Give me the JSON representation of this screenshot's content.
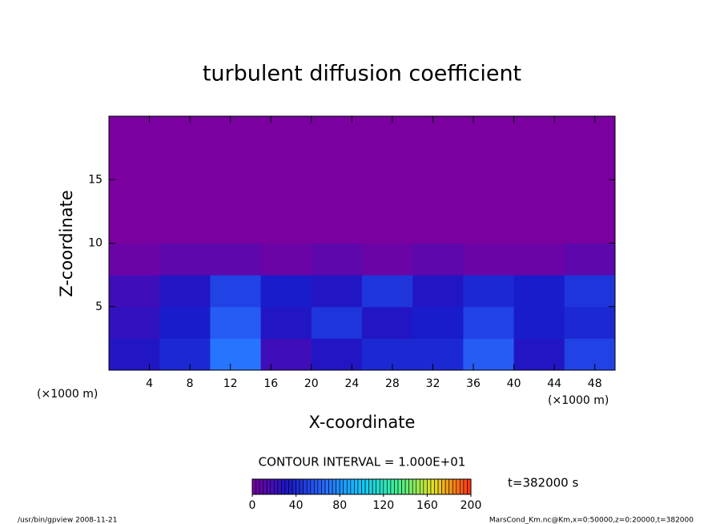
{
  "chart_data": {
    "type": "contour",
    "title": "turbulent diffusion coefficient",
    "x_label": "X-coordinate",
    "y_label": "Z-coordinate",
    "x_unit": "(×1000 m)",
    "xlim": [
      0,
      50
    ],
    "ylim": [
      0,
      20
    ],
    "xticks": [
      4,
      8,
      12,
      16,
      20,
      24,
      28,
      32,
      36,
      40,
      44,
      48
    ],
    "yticks": [
      5,
      10,
      15
    ],
    "field": {
      "x": [
        2.5,
        7.5,
        12.5,
        17.5,
        22.5,
        27.5,
        32.5,
        37.5,
        42.5,
        47.5
      ],
      "z": [
        1.25,
        3.75,
        6.25,
        8.75,
        11.25,
        13.75,
        16.25,
        18.75
      ],
      "values": [
        [
          30,
          40,
          70,
          20,
          30,
          40,
          40,
          60,
          30,
          50
        ],
        [
          25,
          35,
          60,
          30,
          45,
          30,
          35,
          50,
          35,
          40
        ],
        [
          20,
          30,
          50,
          35,
          30,
          45,
          30,
          40,
          35,
          45
        ],
        [
          5,
          10,
          10,
          5,
          10,
          5,
          10,
          5,
          5,
          10
        ],
        [
          0,
          0,
          0,
          0,
          0,
          0,
          0,
          0,
          0,
          0
        ],
        [
          0,
          0,
          0,
          0,
          0,
          0,
          0,
          0,
          0,
          0
        ],
        [
          0,
          0,
          0,
          0,
          0,
          0,
          0,
          0,
          0,
          0
        ],
        [
          0,
          0,
          0,
          0,
          0,
          0,
          0,
          0,
          0,
          0
        ]
      ]
    },
    "colors": [
      "#7a00a0",
      "#1818c8",
      "#2a6cff",
      "#10c8ff",
      "#40f090",
      "#e8e020",
      "#ff3010"
    ],
    "clim": [
      0,
      200
    ],
    "cticks": [
      0,
      40,
      80,
      120,
      160,
      200
    ],
    "contour_interval": "CONTOUR INTERVAL = 1.000E+01",
    "time": "t=382000 s",
    "footer_left": "/usr/bin/gpview  2008-11-21",
    "footer_right": "MarsCond_Km.nc@Km,x=0:50000,z=0:20000,t=382000"
  }
}
